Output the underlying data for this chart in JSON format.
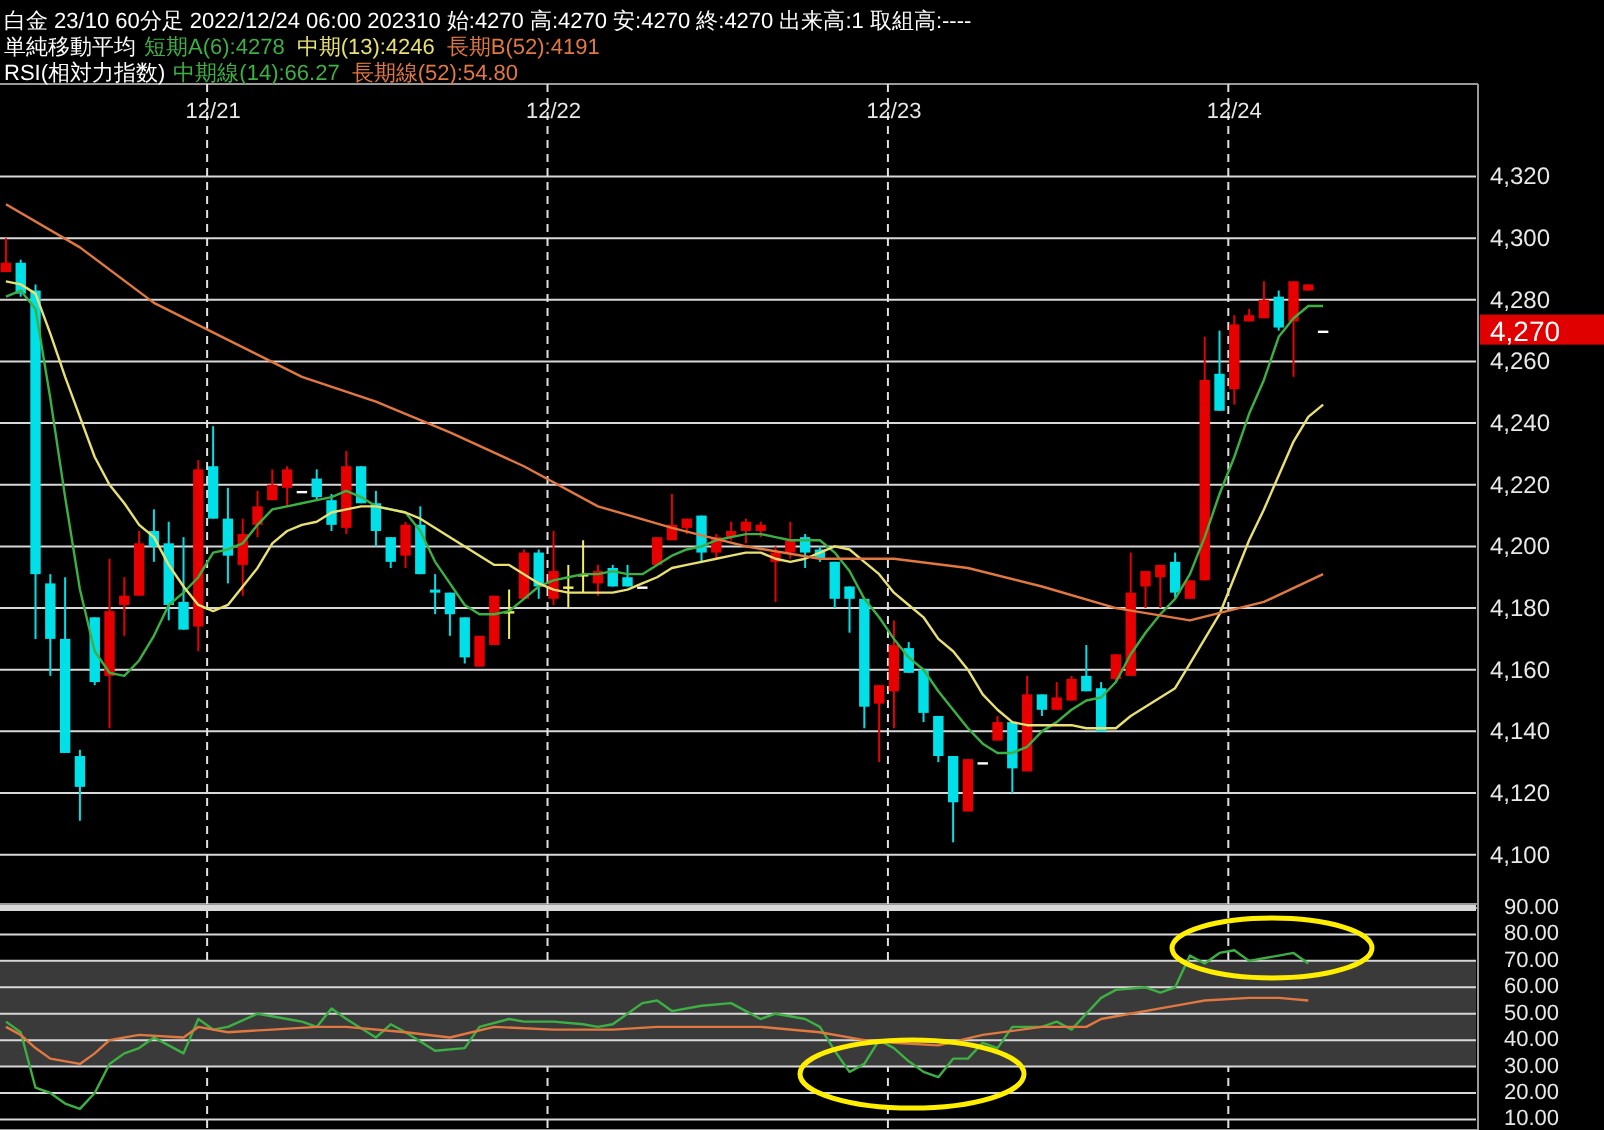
{
  "chart_data": [
    {
      "type": "candlestick",
      "title": "白金 23/10 60分足 2022/12/24 06:00 202310 始:4270 高:4270 安:4270 終:4270 出来高:1 取組高:----",
      "legend_title": "単純移動平均",
      "legend": "top",
      "grid": true,
      "categories": [
        null,
        null,
        null,
        null,
        null,
        null,
        null,
        null,
        null,
        null,
        null,
        null,
        null,
        null,
        "12/21",
        null,
        null,
        null,
        null,
        null,
        null,
        null,
        null,
        null,
        null,
        null,
        null,
        null,
        null,
        null,
        null,
        null,
        null,
        null,
        null,
        null,
        null,
        "12/22",
        null,
        null,
        null,
        null,
        null,
        null,
        null,
        null,
        null,
        null,
        null,
        null,
        null,
        null,
        null,
        null,
        null,
        null,
        null,
        null,
        null,
        null,
        "12/23",
        null,
        null,
        null,
        null,
        null,
        null,
        null,
        null,
        null,
        null,
        null,
        null,
        null,
        null,
        null,
        null,
        null,
        null,
        null,
        null,
        null,
        null,
        "12/24",
        null,
        null,
        null,
        null,
        null,
        null
      ],
      "ohlc": [
        [
          4289,
          4300,
          4289,
          4292
        ],
        [
          4292,
          4293,
          4281,
          4282
        ],
        [
          4283,
          4285,
          4170,
          4191
        ],
        [
          4188,
          4191,
          4158,
          4170
        ],
        [
          4170,
          4190,
          4133,
          4133
        ],
        [
          4132,
          4134,
          4111,
          4122
        ],
        [
          4177,
          4177,
          4155,
          4156
        ],
        [
          4158,
          4196,
          4141,
          4179
        ],
        [
          4181,
          4190,
          4171,
          4184
        ],
        [
          4184,
          4205,
          4184,
          4201
        ],
        [
          4205,
          4212,
          4195,
          4200
        ],
        [
          4201,
          4208,
          4176,
          4181
        ],
        [
          4182,
          4203,
          4173,
          4173
        ],
        [
          4174,
          4228,
          4166,
          4225
        ],
        [
          4226,
          4239,
          4209,
          4209
        ],
        [
          4209,
          4219,
          4188,
          4197
        ],
        [
          4194,
          4209,
          4184,
          4204
        ],
        [
          4207,
          4218,
          4203,
          4213
        ],
        [
          4215,
          4225,
          4215,
          4220
        ],
        [
          4219,
          4226,
          4213,
          4225
        ],
        [
          4218,
          4218,
          4218,
          4218
        ],
        [
          4222,
          4225,
          4215,
          4216
        ],
        [
          4215,
          4217,
          4205,
          4207
        ],
        [
          4206,
          4231,
          4204,
          4226
        ],
        [
          4226,
          4226,
          4214,
          4214
        ],
        [
          4214,
          4218,
          4200,
          4205
        ],
        [
          4203,
          4203,
          4193,
          4195
        ],
        [
          4197,
          4208,
          4193,
          4207
        ],
        [
          4207,
          4213,
          4191,
          4191
        ],
        [
          4186,
          4191,
          4178,
          4185
        ],
        [
          4185,
          4185,
          4171,
          4178
        ],
        [
          4177,
          4177,
          4162,
          4164
        ],
        [
          4161,
          4171,
          4161,
          4171
        ],
        [
          4168,
          4184,
          4168,
          4184
        ],
        [
          4179,
          4186,
          4170,
          4179
        ],
        [
          4183,
          4199,
          4183,
          4198
        ],
        [
          4198,
          4199,
          4183,
          4187
        ],
        [
          4183,
          4205,
          4181,
          4192
        ],
        [
          4187,
          4194,
          4180,
          4187
        ],
        [
          4191,
          4202,
          4185,
          4191
        ],
        [
          4188,
          4194,
          4184,
          4192
        ],
        [
          4193,
          4194,
          4187,
          4187
        ],
        [
          4190,
          4194,
          4187,
          4187
        ],
        [
          4187,
          4187,
          4187,
          4187
        ],
        [
          4194,
          4203,
          4194,
          4203
        ],
        [
          4202,
          4217,
          4202,
          4207
        ],
        [
          4206,
          4209,
          4204,
          4209
        ],
        [
          4210,
          4210,
          4195,
          4198
        ],
        [
          4198,
          4204,
          4196,
          4203
        ],
        [
          4203,
          4208,
          4202,
          4205
        ],
        [
          4205,
          4209,
          4201,
          4208
        ],
        [
          4205,
          4208,
          4203,
          4207
        ],
        [
          4195,
          4200,
          4182,
          4198
        ],
        [
          4198,
          4208,
          4196,
          4202
        ],
        [
          4203,
          4204,
          4193,
          4198
        ],
        [
          4199,
          4200,
          4195,
          4196
        ],
        [
          4195,
          4195,
          4180,
          4183
        ],
        [
          4187,
          4187,
          4172,
          4183
        ],
        [
          4183,
          4183,
          4141,
          4148
        ],
        [
          4149,
          4155,
          4130,
          4155
        ],
        [
          4153,
          4176,
          4141,
          4168
        ],
        [
          4167,
          4169,
          4159,
          4159
        ],
        [
          4160,
          4160,
          4143,
          4146
        ],
        [
          4145,
          4145,
          4130,
          4132
        ],
        [
          4132,
          4132,
          4104,
          4117
        ],
        [
          4114,
          4131,
          4114,
          4131
        ],
        [
          4130,
          4130,
          4130,
          4130
        ],
        [
          4137,
          4145,
          4137,
          4143
        ],
        [
          4143,
          4143,
          4120,
          4128
        ],
        [
          4127,
          4158,
          4127,
          4152
        ],
        [
          4152,
          4152,
          4145,
          4147
        ],
        [
          4147,
          4156,
          4147,
          4151
        ],
        [
          4150,
          4158,
          4150,
          4157
        ],
        [
          4158,
          4168,
          4153,
          4153
        ],
        [
          4154,
          4156,
          4140,
          4140
        ],
        [
          4157,
          4165,
          4156,
          4165
        ],
        [
          4158,
          4198,
          4158,
          4185
        ],
        [
          4187,
          4192,
          4180,
          4192
        ],
        [
          4190,
          4194,
          4180,
          4194
        ],
        [
          4195,
          4198,
          4183,
          4185
        ],
        [
          4183,
          4189,
          4183,
          4189
        ],
        [
          4189,
          4268,
          4189,
          4254
        ],
        [
          4256,
          4270,
          4244,
          4244
        ],
        [
          4251,
          4275,
          4246,
          4272
        ],
        [
          4273,
          4277,
          4273,
          4275
        ],
        [
          4274,
          4286,
          4274,
          4280
        ],
        [
          4281,
          4283,
          4270,
          4271
        ],
        [
          4273,
          4286,
          4255,
          4286
        ],
        [
          4283,
          4285,
          4283,
          4285
        ],
        [
          4270,
          4270,
          4270,
          4270
        ]
      ],
      "colors": [
        "#e60000",
        "#00e0e8",
        "#00e0e8",
        "#00e0e8",
        "#00e0e8",
        "#00e0e8",
        "#00e0e8",
        "#e60000",
        "#e60000",
        "#e60000",
        "#00e0e8",
        "#00e0e8",
        "#00e0e8",
        "#e60000",
        "#00e0e8",
        "#00e0e8",
        "#e60000",
        "#e60000",
        "#e60000",
        "#e60000",
        "#ffffff",
        "#00e0e8",
        "#00e0e8",
        "#e60000",
        "#00e0e8",
        "#00e0e8",
        "#00e0e8",
        "#e60000",
        "#00e0e8",
        "#00e0e8",
        "#00e0e8",
        "#00e0e8",
        "#e60000",
        "#e60000",
        "#f0f060",
        "#e60000",
        "#00e0e8",
        "#e60000",
        "#f0f060",
        "#f0f060",
        "#e60000",
        "#00e0e8",
        "#00e0e8",
        "#ffffff",
        "#e60000",
        "#e60000",
        "#e60000",
        "#00e0e8",
        "#e60000",
        "#e60000",
        "#e60000",
        "#e60000",
        "#e60000",
        "#e60000",
        "#00e0e8",
        "#00e0e8",
        "#00e0e8",
        "#00e0e8",
        "#00e0e8",
        "#e60000",
        "#e60000",
        "#00e0e8",
        "#00e0e8",
        "#00e0e8",
        "#00e0e8",
        "#e60000",
        "#ffffff",
        "#e60000",
        "#00e0e8",
        "#e60000",
        "#00e0e8",
        "#e60000",
        "#e60000",
        "#00e0e8",
        "#00e0e8",
        "#e60000",
        "#e60000",
        "#e60000",
        "#e60000",
        "#00e0e8",
        "#e60000",
        "#e60000",
        "#00e0e8",
        "#e60000",
        "#e60000",
        "#e60000",
        "#00e0e8",
        "#e60000",
        "#e60000",
        "#ffffff"
      ],
      "series": [
        {
          "type": "line",
          "name": "短期A(6):4278",
          "color": "#3cb043",
          "values": [
            4281,
            4283,
            4277,
            4248,
            4216,
            4186,
            4166,
            4159,
            4158,
            4163,
            4171,
            4181,
            4185,
            4190,
            4198,
            4199,
            4201,
            4207,
            4212,
            4213,
            4214,
            4215,
            4216,
            4218,
            4216,
            4213,
            4212,
            4211,
            4205,
            4195,
            4188,
            4181,
            4178,
            4178,
            4179,
            4183,
            4187,
            4189,
            4190,
            4191,
            4191,
            4192,
            4191,
            4191,
            4194,
            4197,
            4199,
            4200,
            4202,
            4203,
            4204,
            4204,
            4203,
            4202,
            4202,
            4202,
            4198,
            4192,
            4183,
            4177,
            4170,
            4164,
            4160,
            4153,
            4147,
            4141,
            4136,
            4133,
            4133,
            4135,
            4140,
            4143,
            4147,
            4150,
            4151,
            4156,
            4165,
            4172,
            4178,
            4183,
            4191,
            4203,
            4217,
            4229,
            4243,
            4254,
            4268,
            4274,
            4278,
            4278
          ]
        },
        {
          "type": "line",
          "name": "中期(13):4246",
          "color": "#e8e070",
          "values": [
            4286,
            4285,
            4282,
            4269,
            4255,
            4242,
            4229,
            4220,
            4214,
            4207,
            4203,
            4194,
            4187,
            4181,
            4179,
            4181,
            4187,
            4193,
            4201,
            4205,
            4207,
            4208,
            4211,
            4212,
            4213,
            4213,
            4212,
            4211,
            4209,
            4206,
            4203,
            4200,
            4197,
            4194,
            4194,
            4191,
            4188,
            4186,
            4185,
            4185,
            4185,
            4185,
            4186,
            4188,
            4190,
            4193,
            4194,
            4195,
            4196,
            4197,
            4198,
            4198,
            4196,
            4195,
            4196,
            4198,
            4200,
            4199,
            4195,
            4191,
            4185,
            4181,
            4177,
            4170,
            4166,
            4160,
            4152,
            4147,
            4143,
            4142,
            4142,
            4142,
            4142,
            4141,
            4141,
            4141,
            4145,
            4148,
            4151,
            4154,
            4162,
            4170,
            4178,
            4190,
            4202,
            4212,
            4223,
            4234,
            4242,
            4246
          ]
        },
        {
          "type": "line",
          "name": "長期B(52):4191",
          "color": "#e07840",
          "values": [
            4311,
            null,
            null,
            null,
            null,
            4297,
            null,
            null,
            null,
            null,
            4279,
            null,
            null,
            null,
            null,
            4267,
            null,
            null,
            null,
            null,
            4255,
            null,
            null,
            null,
            null,
            4247,
            null,
            null,
            null,
            null,
            4237,
            null,
            null,
            null,
            null,
            4226,
            null,
            null,
            null,
            null,
            4213,
            null,
            null,
            null,
            null,
            4206,
            null,
            null,
            null,
            null,
            4200,
            null,
            null,
            null,
            null,
            4196,
            null,
            null,
            null,
            null,
            4196,
            null,
            null,
            null,
            null,
            4193,
            null,
            null,
            null,
            null,
            4187,
            null,
            null,
            null,
            null,
            4180,
            null,
            null,
            null,
            null,
            4176,
            null,
            null,
            null,
            null,
            4182,
            null,
            null,
            null,
            4191
          ]
        }
      ],
      "ylim": [
        4084,
        4350
      ],
      "yticks": [
        {
          "value": 4100,
          "label": "4,100"
        },
        {
          "value": 4120,
          "label": "4,120"
        },
        {
          "value": 4140,
          "label": "4,140"
        },
        {
          "value": 4160,
          "label": "4,160"
        },
        {
          "value": 4180,
          "label": "4,180"
        },
        {
          "value": 4200,
          "label": "4,200"
        },
        {
          "value": 4220,
          "label": "4,220"
        },
        {
          "value": 4240,
          "label": "4,240"
        },
        {
          "value": 4260,
          "label": "4,260"
        },
        {
          "value": 4280,
          "label": "4,280"
        },
        {
          "value": 4300,
          "label": "4,300"
        },
        {
          "value": 4320,
          "label": "4,320"
        }
      ],
      "annotations": [
        "4,270"
      ]
    },
    {
      "type": "line",
      "legend_title": "RSI(相対力指数)",
      "legend": "top",
      "grid": true,
      "tick_labels": "y",
      "categories": [
        null,
        null,
        null,
        null,
        null,
        null,
        null,
        null,
        null,
        null,
        null,
        null,
        null,
        null,
        null,
        null,
        null,
        null,
        null,
        null,
        null,
        null,
        null,
        null,
        null,
        null,
        null,
        null,
        null,
        null,
        null,
        null,
        null,
        null,
        null,
        null,
        null,
        null,
        null,
        null,
        null,
        null,
        null,
        null,
        null,
        null,
        null,
        null,
        null,
        null,
        null,
        null,
        null,
        null,
        null,
        null,
        null,
        null,
        null,
        null,
        null,
        null,
        null,
        null,
        null,
        null,
        null,
        null,
        null,
        null,
        null,
        null,
        null,
        null,
        null,
        null,
        null,
        null,
        null,
        null,
        null,
        null,
        null,
        null,
        null,
        null,
        null,
        null,
        null,
        null
      ],
      "series": [
        {
          "name": "中期線(14):66.27",
          "color": "#3cb043",
          "values": [
            47,
            43,
            22,
            20,
            16,
            14,
            20,
            31,
            35,
            37,
            41,
            38,
            35,
            48,
            44,
            45,
            null,
            50,
            null,
            48,
            47,
            45,
            52,
            48,
            null,
            41,
            46,
            43,
            null,
            36,
            null,
            37,
            45,
            null,
            48,
            47,
            null,
            47,
            null,
            46,
            45,
            46,
            null,
            54,
            55,
            51,
            null,
            53,
            null,
            54,
            null,
            48,
            50,
            null,
            48,
            45,
            36,
            28,
            31,
            40,
            37,
            32,
            28,
            26,
            33,
            33,
            39,
            37,
            45,
            45,
            45,
            47,
            44,
            null,
            56,
            59,
            null,
            60,
            58,
            60,
            72,
            69,
            73,
            74,
            70,
            null,
            72,
            73,
            69,
            null
          ]
        },
        {
          "name": "長期線(52):54.80",
          "color": "#e07840",
          "values": [
            45,
            42,
            37,
            33,
            null,
            31,
            35,
            40,
            null,
            42,
            null,
            null,
            41,
            45,
            null,
            43,
            null,
            null,
            44,
            null,
            null,
            45,
            null,
            45,
            null,
            null,
            null,
            43,
            null,
            null,
            41,
            null,
            null,
            45,
            null,
            null,
            null,
            44,
            null,
            null,
            null,
            44,
            null,
            null,
            45,
            null,
            null,
            null,
            null,
            null,
            null,
            45,
            null,
            null,
            null,
            43,
            null,
            null,
            40,
            null,
            39,
            null,
            null,
            38,
            null,
            null,
            42,
            null,
            null,
            null,
            45,
            null,
            null,
            45,
            48,
            null,
            null,
            null,
            52,
            null,
            54,
            55,
            null,
            null,
            56,
            null,
            56,
            null,
            55,
            null
          ]
        }
      ],
      "ylim": [
        6,
        90
      ],
      "yticks": [
        {
          "value": 10,
          "label": "10.00"
        },
        {
          "value": 20,
          "label": "20.00"
        },
        {
          "value": 30,
          "label": "30.00"
        },
        {
          "value": 40,
          "label": "40.00"
        },
        {
          "value": 50,
          "label": "50.00"
        },
        {
          "value": 60,
          "label": "60.00"
        },
        {
          "value": 70,
          "label": "70.00"
        },
        {
          "value": 80,
          "label": "80.00"
        },
        {
          "value": 90,
          "label": "90.00"
        }
      ],
      "bands": [
        {
          "axis": "y",
          "from": 30,
          "to": 70,
          "color": "#3a3a3a"
        }
      ]
    }
  ]
}
